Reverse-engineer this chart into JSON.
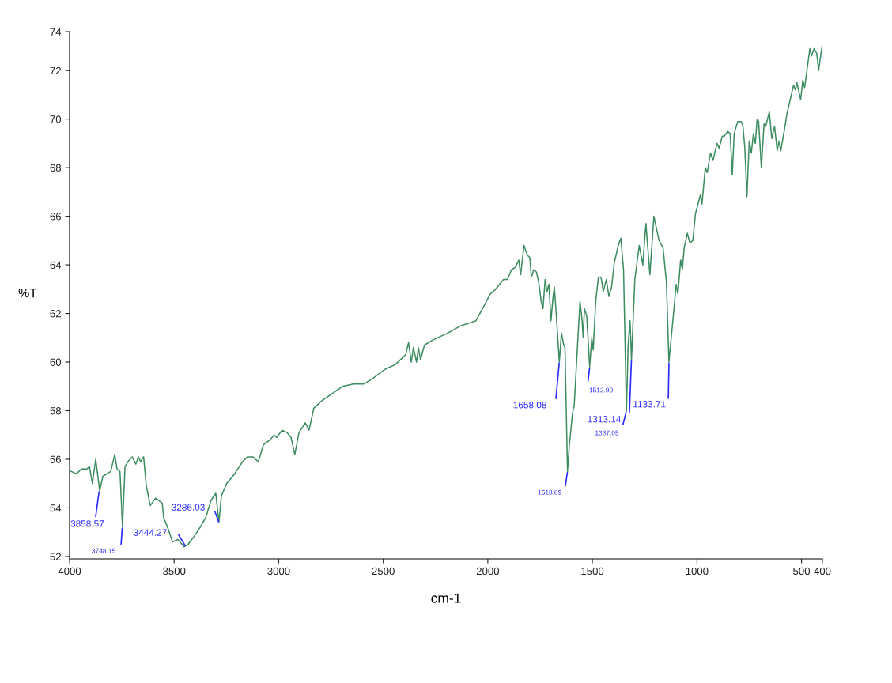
{
  "chart_data": {
    "type": "line",
    "xlabel": "cm-1",
    "ylabel": "%T",
    "xlim": [
      4000,
      400
    ],
    "xticks": [
      4000,
      3500,
      3000,
      2500,
      2000,
      1500,
      1000,
      500,
      400
    ],
    "ylim": [
      51.9,
      73.6
    ],
    "yticks": [
      52,
      54,
      56,
      58,
      60,
      62,
      64,
      66,
      68,
      70,
      72,
      {
        "value": 73.6,
        "label": "74"
      }
    ],
    "series": [
      {
        "color": "#3b8c5e",
        "x": [
          4000,
          3992,
          3967,
          3943,
          3917,
          3905,
          3891,
          3875,
          3856,
          3841,
          3822,
          3803,
          3784,
          3773,
          3759,
          3747,
          3735,
          3721,
          3701,
          3683,
          3671,
          3660,
          3646,
          3633,
          3614,
          3589,
          3557,
          3550,
          3527,
          3508,
          3482,
          3452,
          3433,
          3406,
          3376,
          3349,
          3324,
          3301,
          3286,
          3274,
          3249,
          3211,
          3173,
          3149,
          3123,
          3111,
          3097,
          3073,
          3041,
          3022,
          3009,
          2984,
          2960,
          2941,
          2923,
          2903,
          2873,
          2855,
          2832,
          2795,
          2744,
          2695,
          2643,
          2593,
          2555,
          2492,
          2442,
          2393,
          2379,
          2366,
          2356,
          2341,
          2332,
          2322,
          2303,
          2265,
          2190,
          2128,
          2090,
          2057,
          2038,
          2019,
          2007,
          1988,
          1963,
          1925,
          1906,
          1887,
          1868,
          1852,
          1843,
          1827,
          1811,
          1799,
          1792,
          1780,
          1767,
          1755,
          1745,
          1736,
          1726,
          1717,
          1708,
          1698,
          1689,
          1682,
          1673,
          1658,
          1648,
          1637,
          1631,
          1619,
          1610,
          1595,
          1587,
          1569,
          1559,
          1549,
          1544,
          1538,
          1527,
          1513,
          1503,
          1496,
          1484,
          1471,
          1459,
          1448,
          1433,
          1421,
          1408,
          1395,
          1376,
          1364,
          1351,
          1337,
          1329,
          1320,
          1313,
          1297,
          1276,
          1259,
          1244,
          1225,
          1206,
          1181,
          1162,
          1146,
          1134,
          1112,
          1099,
          1091,
          1078,
          1070,
          1061,
          1046,
          1034,
          1020,
          1007,
          998,
          983,
          976,
          960,
          951,
          935,
          923,
          904,
          894,
          879,
          869,
          853,
          841,
          831,
          822,
          805,
          788,
          780,
          771,
          761,
          750,
          740,
          730,
          721,
          712,
          705,
          692,
          679,
          671,
          654,
          642,
          629,
          616,
          608,
          599,
          579,
          570,
          554,
          538,
          529,
          522,
          504,
          494,
          485,
          471,
          460,
          452,
          440,
          427,
          418,
          412,
          400
        ],
        "values": [
          55.5,
          55.5,
          55.4,
          55.6,
          55.6,
          55.7,
          55.0,
          56.0,
          54.7,
          55.3,
          55.4,
          55.5,
          56.2,
          55.6,
          55.5,
          53.2,
          55.7,
          55.9,
          56.1,
          55.8,
          56.1,
          55.9,
          56.1,
          54.9,
          54.1,
          54.4,
          54.2,
          53.6,
          53.1,
          52.6,
          52.7,
          52.4,
          52.5,
          52.8,
          53.2,
          53.6,
          54.3,
          54.6,
          53.4,
          54.5,
          55.0,
          55.4,
          55.9,
          56.1,
          56.1,
          56.0,
          55.9,
          56.6,
          56.8,
          57.0,
          56.9,
          57.2,
          57.1,
          56.9,
          56.2,
          57.1,
          57.5,
          57.2,
          58.1,
          58.4,
          58.7,
          59.0,
          59.1,
          59.1,
          59.3,
          59.7,
          59.9,
          60.3,
          60.8,
          60.0,
          60.6,
          60.0,
          60.6,
          60.1,
          60.7,
          60.9,
          61.2,
          61.5,
          61.6,
          61.7,
          62.0,
          62.3,
          62.5,
          62.8,
          63.0,
          63.4,
          63.4,
          63.8,
          63.9,
          64.2,
          63.6,
          64.8,
          64.4,
          64.3,
          63.5,
          63.8,
          63.7,
          63.2,
          62.5,
          62.2,
          63.4,
          62.9,
          63.2,
          61.7,
          62.6,
          63.1,
          62.0,
          60.0,
          61.2,
          60.7,
          60.6,
          55.5,
          56.6,
          57.9,
          58.2,
          61.0,
          62.5,
          61.7,
          61.0,
          62.2,
          61.9,
          59.8,
          61.0,
          60.5,
          62.5,
          63.5,
          63.5,
          62.9,
          63.4,
          62.7,
          63.1,
          64.1,
          64.8,
          65.1,
          63.8,
          58.0,
          60.7,
          61.7,
          60.1,
          63.4,
          64.8,
          64.0,
          65.7,
          63.6,
          66.0,
          65.0,
          64.7,
          63.3,
          60.0,
          62.0,
          63.2,
          62.8,
          64.2,
          63.8,
          64.7,
          65.3,
          64.9,
          65.0,
          66.1,
          66.4,
          66.9,
          66.5,
          68.0,
          67.8,
          68.6,
          68.3,
          69.0,
          68.8,
          69.3,
          69.3,
          69.5,
          69.4,
          67.7,
          69.4,
          69.9,
          69.9,
          69.7,
          68.8,
          66.8,
          69.1,
          68.6,
          69.4,
          69.0,
          70.0,
          69.9,
          68.0,
          69.8,
          69.7,
          70.3,
          69.2,
          69.7,
          68.7,
          69.1,
          68.7,
          69.7,
          70.2,
          70.8,
          71.4,
          71.2,
          71.5,
          70.8,
          71.6,
          71.3,
          72.2,
          72.9,
          72.6,
          72.9,
          72.7,
          72.0,
          72.4,
          73.1
        ]
      }
    ],
    "annotations": [
      {
        "text": "3858.57",
        "x": 3858.57,
        "y": 54.7
      },
      {
        "text": "3748.15",
        "x": 3748.15,
        "y": 53.2
      },
      {
        "text": "3444.27",
        "x": 3444.27,
        "y": 52.4
      },
      {
        "text": "3286.03",
        "x": 3286.03,
        "y": 53.4
      },
      {
        "text": "1658.08",
        "x": 1658.08,
        "y": 60.0
      },
      {
        "text": "1618.89",
        "x": 1618.89,
        "y": 55.5
      },
      {
        "text": "1512.90",
        "x": 1512.9,
        "y": 59.8
      },
      {
        "text": "1337.05",
        "x": 1337.05,
        "y": 58.0
      },
      {
        "text": "1313.14",
        "x": 1313.14,
        "y": 60.1
      },
      {
        "text": "1133.71",
        "x": 1133.71,
        "y": 60.0
      }
    ]
  }
}
